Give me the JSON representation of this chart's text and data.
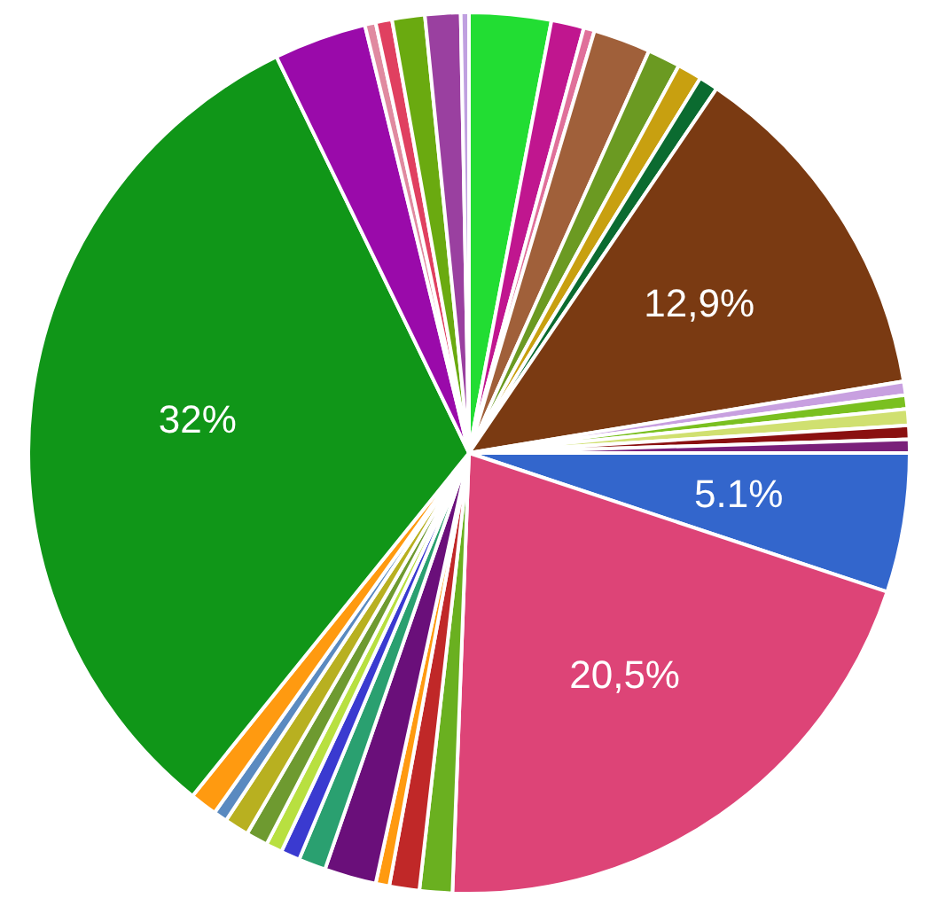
{
  "chart_data": {
    "type": "pie",
    "categories": [
      null,
      null,
      null,
      null,
      null,
      null,
      null,
      null,
      null,
      null,
      null,
      null,
      null,
      null,
      null,
      null,
      null,
      null,
      null,
      null,
      null,
      null,
      null,
      null,
      null,
      null,
      null,
      null,
      null,
      null,
      null,
      null,
      null
    ],
    "values": [
      3.0,
      1.2,
      0.4,
      2.1,
      1.2,
      0.9,
      0.7,
      12.9,
      0.5,
      0.5,
      0.6,
      0.5,
      0.5,
      5.1,
      20.5,
      1.2,
      1.1,
      0.5,
      1.9,
      1.0,
      0.7,
      0.6,
      0.8,
      0.9,
      0.5,
      1.0,
      32,
      3.4,
      0.4,
      0.6,
      1.2,
      1.3,
      0.3
    ],
    "colors": [
      "#22dd33",
      "#c0168f",
      "#e0709a",
      "#a0603a",
      "#6b9a22",
      "#c8a010",
      "#0b6b30",
      "#7a3a12",
      "#c8a0e0",
      "#7ac020",
      "#d0e070",
      "#8a1010",
      "#7a207a",
      "#3366cc",
      "#dd4477",
      "#6ab020",
      "#c02828",
      "#ff9a10",
      "#6a0f7a",
      "#2aa070",
      "#3a3ad0",
      "#b8e040",
      "#6e9a30",
      "#b8b020",
      "#5a8ac0",
      "#ff9a10",
      "#109618",
      "#9a0aaa",
      "#e08aa0",
      "#e04060",
      "#6aaa10",
      "#9a40a0",
      "#c0a0e0"
    ],
    "value_labels": [
      null,
      null,
      null,
      null,
      null,
      null,
      null,
      "12,9%",
      null,
      null,
      null,
      null,
      null,
      "5.1%",
      "20,5%",
      null,
      null,
      null,
      null,
      null,
      null,
      null,
      null,
      null,
      null,
      null,
      "32%",
      null,
      null,
      null,
      null,
      null,
      null
    ],
    "legend": false
  }
}
